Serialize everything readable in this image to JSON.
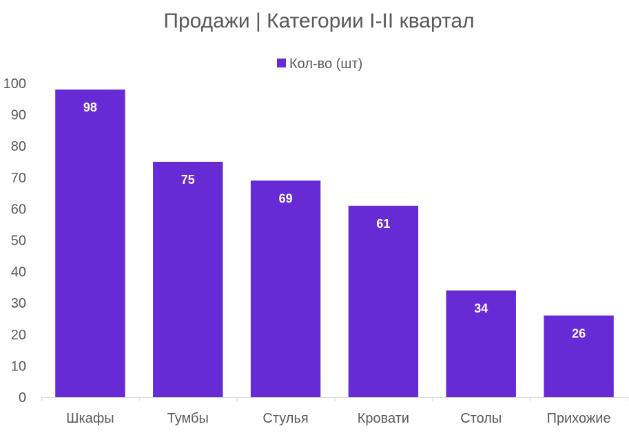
{
  "chart_data": {
    "type": "bar",
    "title": "Продажи | Категории I-II квартал",
    "categories": [
      "Шкафы",
      "Тумбы",
      "Стулья",
      "Кровати",
      "Столы",
      "Прихожие"
    ],
    "series": [
      {
        "name": "Кол-во (шт)",
        "values": [
          98,
          75,
          69,
          61,
          34,
          26
        ],
        "color": "#672bd6"
      }
    ],
    "ylim": [
      0,
      100
    ],
    "yticks": [
      0,
      10,
      20,
      30,
      40,
      50,
      60,
      70,
      80,
      90,
      100
    ],
    "grid": false,
    "legend_position": "top",
    "data_labels": true
  }
}
